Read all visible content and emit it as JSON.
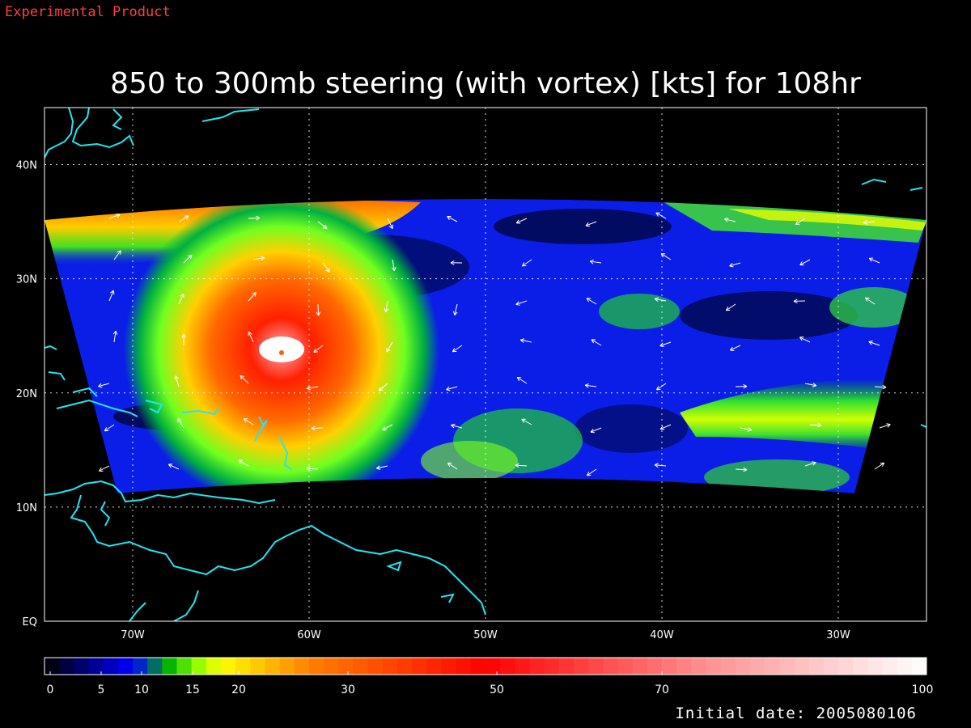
{
  "header": {
    "product_label": "Experimental Product",
    "title": "850 to 300mb steering (with vortex) [kts] for 108hr"
  },
  "map": {
    "lon_range": [
      -75,
      -25
    ],
    "lat_range": [
      0,
      45
    ],
    "lon_ticks": [
      {
        "value": -70,
        "label": "70W"
      },
      {
        "value": -60,
        "label": "60W"
      },
      {
        "value": -50,
        "label": "50W"
      },
      {
        "value": -40,
        "label": "40W"
      },
      {
        "value": -30,
        "label": "30W"
      }
    ],
    "lat_ticks": [
      {
        "value": 0,
        "label": "EQ"
      },
      {
        "value": 10,
        "label": "10N"
      },
      {
        "value": 20,
        "label": "20N"
      },
      {
        "value": 30,
        "label": "30N"
      },
      {
        "value": 40,
        "label": "40N"
      }
    ],
    "grid": "dotted",
    "coastline_color": "#22e6f0",
    "vortex_center": {
      "lon": -61.5,
      "lat": 23.5
    },
    "field_units": "kts"
  },
  "colorbar": {
    "tick_labels": [
      {
        "value": 0,
        "label": "0"
      },
      {
        "value": 5,
        "label": "5"
      },
      {
        "value": 10,
        "label": "10"
      },
      {
        "value": 15,
        "label": "15"
      },
      {
        "value": 20,
        "label": "20"
      },
      {
        "value": 30,
        "label": "30"
      },
      {
        "value": 50,
        "label": "50"
      },
      {
        "value": 70,
        "label": "70"
      },
      {
        "value": 100,
        "label": "100"
      }
    ],
    "colors": [
      "#000000",
      "#00007f",
      "#0000ff",
      "#00b000",
      "#80ff00",
      "#ffff00",
      "#ff8000",
      "#ff0000",
      "#ff9090",
      "#ffffff"
    ]
  },
  "footer": {
    "initial_date": "Initial date: 2005080106"
  }
}
